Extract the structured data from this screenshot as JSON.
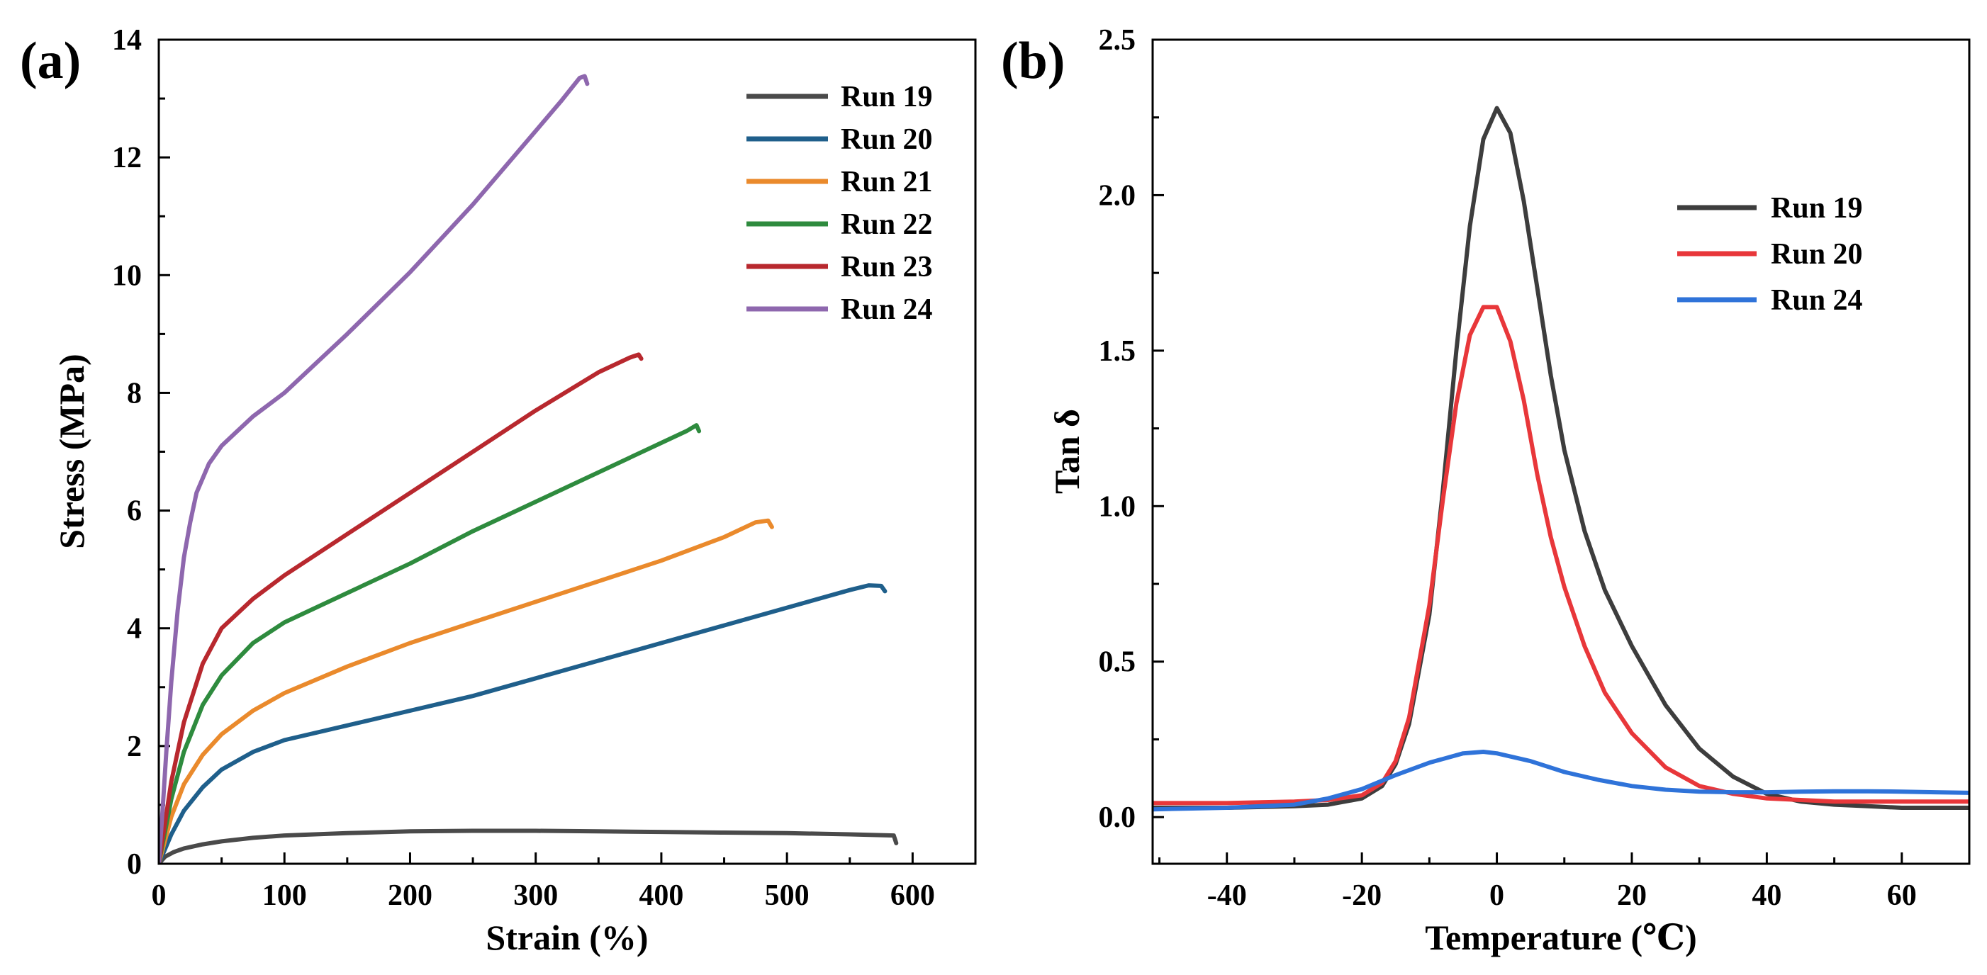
{
  "chart_data": [
    {
      "panel_label": "(a)",
      "type": "line",
      "xlabel": "Strain (%)",
      "ylabel": "Stress (MPa)",
      "xlim": [
        0,
        650
      ],
      "ylim": [
        0,
        14
      ],
      "xticks": [
        0,
        100,
        200,
        300,
        400,
        500,
        600
      ],
      "yticks": [
        0,
        2,
        4,
        6,
        8,
        10,
        12,
        14
      ],
      "grid": false,
      "legend_position": "top-right",
      "series": [
        {
          "name": "Run 19",
          "color": "#4a4a4a",
          "x": [
            0,
            5,
            12,
            20,
            35,
            50,
            75,
            100,
            150,
            200,
            250,
            300,
            350,
            400,
            450,
            500,
            550,
            585,
            587
          ],
          "y": [
            0,
            0.12,
            0.2,
            0.26,
            0.33,
            0.38,
            0.44,
            0.48,
            0.52,
            0.55,
            0.56,
            0.56,
            0.55,
            0.54,
            0.53,
            0.52,
            0.5,
            0.48,
            0.35
          ]
        },
        {
          "name": "Run 20",
          "color": "#1f5f8b",
          "x": [
            0,
            5,
            10,
            20,
            35,
            50,
            75,
            100,
            150,
            200,
            250,
            300,
            350,
            400,
            450,
            500,
            550,
            565,
            575,
            578
          ],
          "y": [
            0,
            0.25,
            0.5,
            0.9,
            1.3,
            1.6,
            1.9,
            2.1,
            2.35,
            2.6,
            2.85,
            3.15,
            3.45,
            3.75,
            4.05,
            4.35,
            4.65,
            4.73,
            4.72,
            4.63
          ]
        },
        {
          "name": "Run 21",
          "color": "#ea8a2c",
          "x": [
            0,
            5,
            10,
            20,
            35,
            50,
            75,
            100,
            150,
            200,
            250,
            300,
            350,
            400,
            450,
            475,
            485,
            488
          ],
          "y": [
            0,
            0.4,
            0.8,
            1.35,
            1.85,
            2.2,
            2.6,
            2.9,
            3.35,
            3.75,
            4.1,
            4.45,
            4.8,
            5.15,
            5.55,
            5.8,
            5.83,
            5.72
          ]
        },
        {
          "name": "Run 22",
          "color": "#2e8b3e",
          "x": [
            0,
            5,
            10,
            20,
            35,
            50,
            75,
            100,
            150,
            200,
            250,
            300,
            350,
            400,
            420,
            428,
            430
          ],
          "y": [
            0,
            0.55,
            1.1,
            1.9,
            2.7,
            3.2,
            3.75,
            4.1,
            4.6,
            5.1,
            5.65,
            6.15,
            6.65,
            7.15,
            7.35,
            7.45,
            7.35
          ]
        },
        {
          "name": "Run 23",
          "color": "#b8282e",
          "x": [
            0,
            5,
            10,
            20,
            35,
            50,
            75,
            100,
            150,
            200,
            250,
            300,
            350,
            375,
            382,
            384
          ],
          "y": [
            0,
            0.7,
            1.4,
            2.4,
            3.4,
            4.0,
            4.5,
            4.9,
            5.6,
            6.3,
            7.0,
            7.7,
            8.35,
            8.6,
            8.65,
            8.58
          ]
        },
        {
          "name": "Run 24",
          "color": "#8e67ae",
          "x": [
            0,
            3,
            6,
            10,
            15,
            20,
            25,
            30,
            40,
            50,
            60,
            75,
            100,
            150,
            200,
            250,
            300,
            320,
            335,
            339,
            341
          ],
          "y": [
            0,
            0.9,
            1.9,
            3.1,
            4.3,
            5.2,
            5.8,
            6.3,
            6.8,
            7.1,
            7.3,
            7.6,
            8.0,
            9.0,
            10.05,
            11.2,
            12.45,
            12.95,
            13.35,
            13.38,
            13.25
          ]
        }
      ]
    },
    {
      "panel_label": "(b)",
      "type": "line",
      "xlabel": "Temperature (℃)",
      "ylabel": "Tan δ",
      "xlim": [
        -51,
        70
      ],
      "ylim": [
        -0.15,
        2.5
      ],
      "xticks": [
        -40,
        -20,
        0,
        20,
        40,
        60
      ],
      "xtick_labels": [
        "-40",
        "-20",
        "0",
        "20",
        "40",
        "60"
      ],
      "yticks": [
        0.0,
        0.5,
        1.0,
        1.5,
        2.0,
        2.5
      ],
      "ytick_labels": [
        "0.0",
        "0.5",
        "1.0",
        "1.5",
        "2.0",
        "2.5"
      ],
      "grid": false,
      "legend_position": "top-right",
      "series": [
        {
          "name": "Run 19",
          "color": "#3d3d3d",
          "x": [
            -51,
            -40,
            -30,
            -25,
            -20,
            -17,
            -15,
            -13,
            -10,
            -8,
            -6,
            -4,
            -2,
            0,
            2,
            4,
            6,
            8,
            10,
            13,
            16,
            20,
            25,
            30,
            35,
            40,
            45,
            50,
            55,
            60,
            65,
            70
          ],
          "y": [
            0.03,
            0.03,
            0.035,
            0.04,
            0.06,
            0.1,
            0.17,
            0.3,
            0.65,
            1.05,
            1.5,
            1.9,
            2.18,
            2.28,
            2.2,
            1.98,
            1.7,
            1.42,
            1.18,
            0.92,
            0.73,
            0.55,
            0.36,
            0.22,
            0.13,
            0.075,
            0.05,
            0.04,
            0.035,
            0.03,
            0.03,
            0.03
          ]
        },
        {
          "name": "Run 20",
          "color": "#e8373a",
          "x": [
            -51,
            -40,
            -30,
            -25,
            -20,
            -17,
            -15,
            -13,
            -10,
            -8,
            -6,
            -4,
            -2,
            0,
            2,
            4,
            6,
            8,
            10,
            13,
            16,
            20,
            25,
            30,
            35,
            40,
            45,
            50,
            55,
            60,
            65,
            70
          ],
          "y": [
            0.045,
            0.045,
            0.05,
            0.055,
            0.07,
            0.11,
            0.18,
            0.32,
            0.68,
            1.02,
            1.33,
            1.55,
            1.64,
            1.64,
            1.53,
            1.34,
            1.1,
            0.9,
            0.74,
            0.55,
            0.4,
            0.27,
            0.16,
            0.1,
            0.075,
            0.06,
            0.055,
            0.05,
            0.05,
            0.05,
            0.05,
            0.05
          ]
        },
        {
          "name": "Run 24",
          "color": "#2f73d9",
          "x": [
            -51,
            -40,
            -30,
            -25,
            -20,
            -15,
            -10,
            -5,
            -2,
            0,
            5,
            10,
            15,
            20,
            25,
            30,
            35,
            40,
            45,
            50,
            55,
            60,
            65,
            70
          ],
          "y": [
            0.025,
            0.03,
            0.04,
            0.06,
            0.09,
            0.135,
            0.175,
            0.205,
            0.21,
            0.205,
            0.18,
            0.145,
            0.12,
            0.1,
            0.088,
            0.082,
            0.08,
            0.08,
            0.082,
            0.083,
            0.083,
            0.082,
            0.08,
            0.078
          ]
        }
      ]
    }
  ]
}
